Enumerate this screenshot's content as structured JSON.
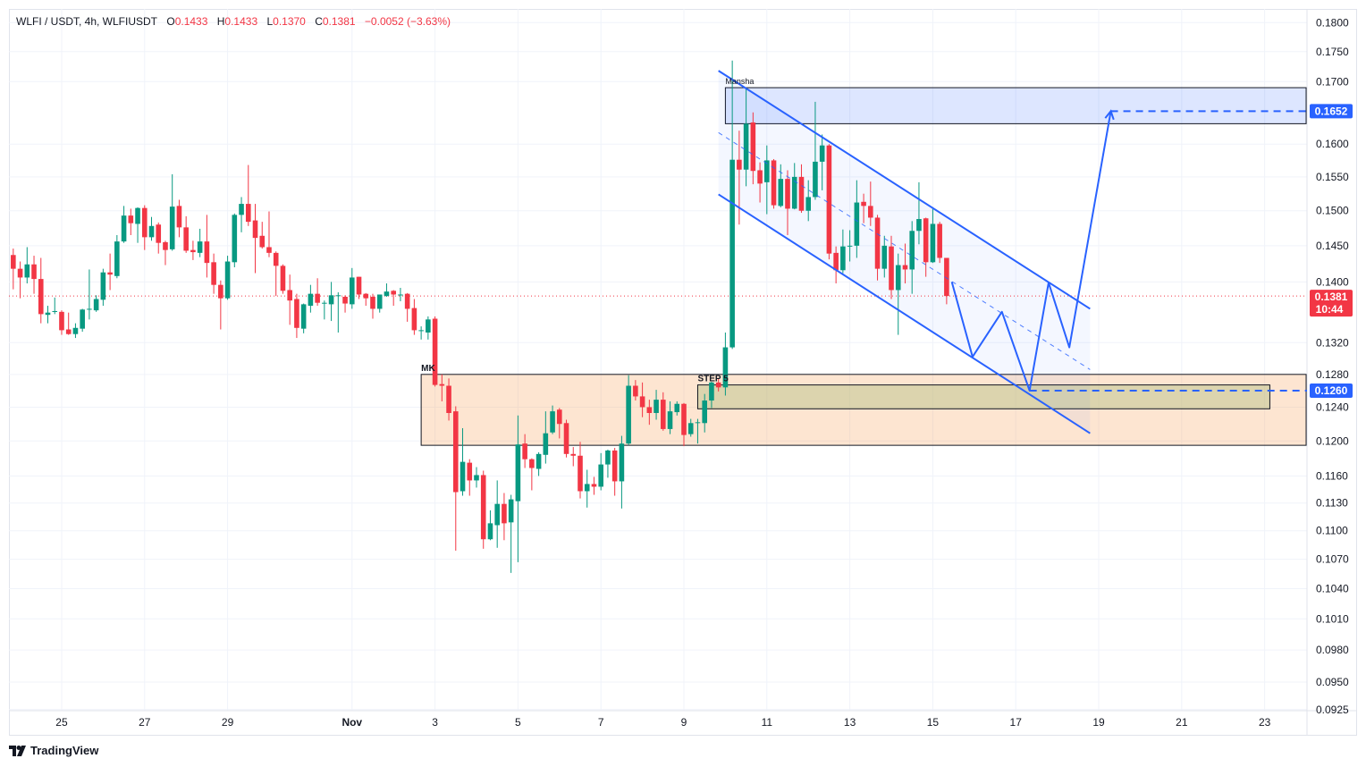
{
  "legend": {
    "symbol": "WLFI / USDT, 4h, WLFIUSDT",
    "o_label": "O",
    "o": "0.1433",
    "h_label": "H",
    "h": "0.1433",
    "l_label": "L",
    "l": "0.1370",
    "c_label": "C",
    "c": "0.1381",
    "change": "−0.0052 (−3.63%)"
  },
  "brand": {
    "name": "TradingView",
    "icon": "tradingview-logo-icon"
  },
  "colors": {
    "up": "#089981",
    "down": "#f23645",
    "drawing": "#2962ff",
    "grid": "#f0f3fa",
    "axis_text": "#131722"
  },
  "chart_data": {
    "type": "candlestick",
    "interval": "4h",
    "y_scale": "log",
    "ylim": [
      0.0924,
      0.1824
    ],
    "xlim": [
      "10-23 17:30",
      "11-24 00:30"
    ],
    "grid": true,
    "x_ticks": [
      {
        "label": "25",
        "t": "10-25 00:00"
      },
      {
        "label": "27",
        "t": "10-27 00:00"
      },
      {
        "label": "29",
        "t": "10-29 00:00"
      },
      {
        "label": "Nov",
        "t": "11-01 00:00"
      },
      {
        "label": "3",
        "t": "11-03 00:00"
      },
      {
        "label": "5",
        "t": "11-05 00:00"
      },
      {
        "label": "7",
        "t": "11-07 00:00"
      },
      {
        "label": "9",
        "t": "11-09 00:00"
      },
      {
        "label": "11",
        "t": "11-11 00:00"
      },
      {
        "label": "13",
        "t": "11-13 00:00"
      },
      {
        "label": "15",
        "t": "11-15 00:00"
      },
      {
        "label": "17",
        "t": "11-17 00:00"
      },
      {
        "label": "19",
        "t": "11-19 00:00"
      },
      {
        "label": "21",
        "t": "11-21 00:00"
      },
      {
        "label": "23",
        "t": "11-23 00:00"
      }
    ],
    "y_ticks": [
      "0.1800",
      "0.1750",
      "0.1700",
      "0.1600",
      "0.1550",
      "0.1500",
      "0.1450",
      "0.1400",
      "0.1320",
      "0.1280",
      "0.1240",
      "0.1200",
      "0.1160",
      "0.1130",
      "0.1100",
      "0.1070",
      "0.1040",
      "0.1010",
      "0.0980",
      "0.0950",
      "0.0925"
    ],
    "price_labels": [
      {
        "value": "0.1652",
        "color": "#2962ff"
      },
      {
        "value": "0.1381",
        "sub": "10:44",
        "color": "#f23645",
        "current": true
      },
      {
        "value": "0.1260",
        "color": "#2962ff"
      }
    ],
    "candles_format": [
      "time",
      "open",
      "high",
      "low",
      "close"
    ],
    "candles": [
      [
        "10-23 20:00",
        0.1437,
        0.1446,
        0.139,
        0.1418
      ],
      [
        "10-24 00:00",
        0.1418,
        0.1428,
        0.1378,
        0.1406
      ],
      [
        "10-24 04:00",
        0.1406,
        0.1448,
        0.1398,
        0.1424
      ],
      [
        "10-24 08:00",
        0.1424,
        0.1436,
        0.1384,
        0.1404
      ],
      [
        "10-24 12:00",
        0.1404,
        0.1433,
        0.1345,
        0.1357
      ],
      [
        "10-24 16:00",
        0.1356,
        0.1368,
        0.1345,
        0.1359
      ],
      [
        "10-24 20:00",
        0.136,
        0.1379,
        0.1357,
        0.1361
      ],
      [
        "10-25 00:00",
        0.136,
        0.1362,
        0.133,
        0.1336
      ],
      [
        "10-25 04:00",
        0.1337,
        0.1359,
        0.133,
        0.1331
      ],
      [
        "10-25 08:00",
        0.1331,
        0.1345,
        0.1326,
        0.1339
      ],
      [
        "10-25 12:00",
        0.1338,
        0.1364,
        0.1334,
        0.1363
      ],
      [
        "10-25 16:00",
        0.1363,
        0.1417,
        0.135,
        0.1364
      ],
      [
        "10-25 20:00",
        0.1362,
        0.1382,
        0.136,
        0.1377
      ],
      [
        "10-26 00:00",
        0.1376,
        0.1418,
        0.1368,
        0.1413
      ],
      [
        "10-26 04:00",
        0.1413,
        0.1439,
        0.1389,
        0.141
      ],
      [
        "10-26 08:00",
        0.1408,
        0.1465,
        0.1405,
        0.1456
      ],
      [
        "10-26 12:00",
        0.1456,
        0.1507,
        0.1454,
        0.1493
      ],
      [
        "10-26 16:00",
        0.1493,
        0.1503,
        0.1465,
        0.1482
      ],
      [
        "10-26 20:00",
        0.1481,
        0.1505,
        0.1454,
        0.1504
      ],
      [
        "10-27 00:00",
        0.1504,
        0.1508,
        0.1444,
        0.1462
      ],
      [
        "10-27 04:00",
        0.1462,
        0.1491,
        0.1457,
        0.1478
      ],
      [
        "10-27 08:00",
        0.148,
        0.1483,
        0.1439,
        0.1454
      ],
      [
        "10-27 12:00",
        0.1455,
        0.1457,
        0.1423,
        0.1444
      ],
      [
        "10-27 16:00",
        0.1445,
        0.1554,
        0.1443,
        0.1506
      ],
      [
        "10-27 20:00",
        0.1507,
        0.1516,
        0.1462,
        0.1476
      ],
      [
        "10-28 00:00",
        0.1476,
        0.1492,
        0.144,
        0.1443
      ],
      [
        "10-28 04:00",
        0.1444,
        0.1457,
        0.143,
        0.1441
      ],
      [
        "10-28 08:00",
        0.144,
        0.1474,
        0.1434,
        0.1456
      ],
      [
        "10-28 12:00",
        0.1456,
        0.1494,
        0.1406,
        0.1426
      ],
      [
        "10-28 16:00",
        0.1427,
        0.1439,
        0.1384,
        0.1396
      ],
      [
        "10-28 20:00",
        0.1396,
        0.1402,
        0.1337,
        0.1378
      ],
      [
        "10-29 00:00",
        0.1378,
        0.1436,
        0.1376,
        0.1428
      ],
      [
        "10-29 04:00",
        0.1427,
        0.1496,
        0.142,
        0.1494
      ],
      [
        "10-29 08:00",
        0.1494,
        0.152,
        0.1469,
        0.151
      ],
      [
        "10-29 12:00",
        0.151,
        0.1568,
        0.1478,
        0.1484
      ],
      [
        "10-29 16:00",
        0.1486,
        0.151,
        0.1412,
        0.1461
      ],
      [
        "10-29 20:00",
        0.1464,
        0.1484,
        0.1446,
        0.1448
      ],
      [
        "10-30 00:00",
        0.1448,
        0.1499,
        0.1434,
        0.144
      ],
      [
        "10-30 04:00",
        0.144,
        0.1442,
        0.1381,
        0.1422
      ],
      [
        "10-30 08:00",
        0.1422,
        0.1424,
        0.1384,
        0.1388
      ],
      [
        "10-30 12:00",
        0.1389,
        0.141,
        0.1343,
        0.1375
      ],
      [
        "10-30 16:00",
        0.1377,
        0.1384,
        0.1326,
        0.1339
      ],
      [
        "10-30 20:00",
        0.1338,
        0.1371,
        0.1332,
        0.137
      ],
      [
        "10-31 00:00",
        0.1368,
        0.1396,
        0.1359,
        0.1384
      ],
      [
        "10-31 04:00",
        0.1384,
        0.1405,
        0.1368,
        0.1372
      ],
      [
        "10-31 08:00",
        0.1372,
        0.1375,
        0.135,
        0.1372
      ],
      [
        "10-31 12:00",
        0.137,
        0.14,
        0.1348,
        0.1382
      ],
      [
        "10-31 16:00",
        0.1382,
        0.1386,
        0.1333,
        0.1382
      ],
      [
        "10-31 20:00",
        0.138,
        0.1382,
        0.1359,
        0.1371
      ],
      [
        "11-01 00:00",
        0.137,
        0.1419,
        0.1364,
        0.1406
      ],
      [
        "11-01 04:00",
        0.1407,
        0.1407,
        0.1377,
        0.1383
      ],
      [
        "11-01 08:00",
        0.1384,
        0.1385,
        0.1368,
        0.1378
      ],
      [
        "11-01 12:00",
        0.138,
        0.1384,
        0.1351,
        0.1364
      ],
      [
        "11-01 16:00",
        0.1364,
        0.1383,
        0.1359,
        0.1383
      ],
      [
        "11-01 20:00",
        0.1381,
        0.1398,
        0.138,
        0.1387
      ],
      [
        "11-02 00:00",
        0.1388,
        0.1389,
        0.1368,
        0.1383
      ],
      [
        "11-02 04:00",
        0.1383,
        0.1392,
        0.1374,
        0.1383
      ],
      [
        "11-02 08:00",
        0.1384,
        0.1385,
        0.1347,
        0.1364
      ],
      [
        "11-02 12:00",
        0.1365,
        0.1377,
        0.133,
        0.1336
      ],
      [
        "11-02 16:00",
        0.1336,
        0.1341,
        0.1324,
        0.1336
      ],
      [
        "11-02 20:00",
        0.1333,
        0.1354,
        0.1324,
        0.135
      ],
      [
        "11-03 00:00",
        0.1351,
        0.1354,
        0.1265,
        0.1267
      ],
      [
        "11-03 04:00",
        0.1268,
        0.128,
        0.1247,
        0.1266
      ],
      [
        "11-03 08:00",
        0.1266,
        0.1275,
        0.1224,
        0.1233
      ],
      [
        "11-03 12:00",
        0.1235,
        0.1241,
        0.1079,
        0.1142
      ],
      [
        "11-03 16:00",
        0.1143,
        0.1215,
        0.1138,
        0.1176
      ],
      [
        "11-03 20:00",
        0.1175,
        0.1179,
        0.1138,
        0.1155
      ],
      [
        "11-04 00:00",
        0.1155,
        0.117,
        0.1147,
        0.1161
      ],
      [
        "11-04 04:00",
        0.1161,
        0.1166,
        0.1081,
        0.1091
      ],
      [
        "11-04 08:00",
        0.1091,
        0.1122,
        0.109,
        0.1108
      ],
      [
        "11-04 12:00",
        0.1106,
        0.1155,
        0.1082,
        0.1129
      ],
      [
        "11-04 16:00",
        0.1129,
        0.1141,
        0.109,
        0.1108
      ],
      [
        "11-04 20:00",
        0.1109,
        0.1139,
        0.1056,
        0.1134
      ],
      [
        "11-05 00:00",
        0.1132,
        0.123,
        0.1067,
        0.1196
      ],
      [
        "11-05 04:00",
        0.1197,
        0.1208,
        0.1169,
        0.1179
      ],
      [
        "11-05 08:00",
        0.1179,
        0.118,
        0.1144,
        0.1169
      ],
      [
        "11-05 12:00",
        0.1168,
        0.1187,
        0.116,
        0.1185
      ],
      [
        "11-05 16:00",
        0.1184,
        0.1235,
        0.1174,
        0.1209
      ],
      [
        "11-05 20:00",
        0.121,
        0.1242,
        0.1208,
        0.1235
      ],
      [
        "11-06 00:00",
        0.1237,
        0.1239,
        0.1203,
        0.122
      ],
      [
        "11-06 04:00",
        0.1221,
        0.1225,
        0.1181,
        0.1185
      ],
      [
        "11-06 08:00",
        0.1185,
        0.1193,
        0.1171,
        0.1183
      ],
      [
        "11-06 12:00",
        0.1183,
        0.1199,
        0.1135,
        0.1143
      ],
      [
        "11-06 16:00",
        0.1143,
        0.1167,
        0.1125,
        0.1151
      ],
      [
        "11-06 20:00",
        0.1151,
        0.1159,
        0.1139,
        0.1148
      ],
      [
        "11-07 00:00",
        0.1148,
        0.1186,
        0.1144,
        0.1173
      ],
      [
        "11-07 04:00",
        0.1173,
        0.119,
        0.1158,
        0.1189
      ],
      [
        "11-07 08:00",
        0.1189,
        0.1192,
        0.1138,
        0.1154
      ],
      [
        "11-07 12:00",
        0.1154,
        0.1206,
        0.1124,
        0.1197
      ],
      [
        "11-07 16:00",
        0.1197,
        0.1279,
        0.1195,
        0.1266
      ],
      [
        "11-07 20:00",
        0.1266,
        0.1273,
        0.1248,
        0.1253
      ],
      [
        "11-08 00:00",
        0.1253,
        0.127,
        0.1228,
        0.124
      ],
      [
        "11-08 04:00",
        0.124,
        0.1249,
        0.1219,
        0.1233
      ],
      [
        "11-08 08:00",
        0.1233,
        0.1261,
        0.1225,
        0.1249
      ],
      [
        "11-08 12:00",
        0.1249,
        0.1258,
        0.1212,
        0.1214
      ],
      [
        "11-08 16:00",
        0.1214,
        0.1247,
        0.1208,
        0.1235
      ],
      [
        "11-08 20:00",
        0.1234,
        0.1247,
        0.123,
        0.1244
      ],
      [
        "11-09 00:00",
        0.1244,
        0.1245,
        0.1194,
        0.1207
      ],
      [
        "11-09 04:00",
        0.1208,
        0.1226,
        0.1205,
        0.1221
      ],
      [
        "11-09 08:00",
        0.1222,
        0.1226,
        0.1197,
        0.1222
      ],
      [
        "11-09 12:00",
        0.1221,
        0.1256,
        0.121,
        0.1248
      ],
      [
        "11-09 16:00",
        0.1248,
        0.1271,
        0.1239,
        0.127
      ],
      [
        "11-09 20:00",
        0.127,
        0.1275,
        0.1259,
        0.1264
      ],
      [
        "11-10 00:00",
        0.1264,
        0.1333,
        0.1254,
        0.1314
      ],
      [
        "11-10 04:00",
        0.1314,
        0.1735,
        0.1312,
        0.1576
      ],
      [
        "11-10 08:00",
        0.1576,
        0.1621,
        0.148,
        0.1561
      ],
      [
        "11-10 12:00",
        0.1561,
        0.169,
        0.1536,
        0.1632
      ],
      [
        "11-10 16:00",
        0.1634,
        0.165,
        0.1539,
        0.1559
      ],
      [
        "11-10 20:00",
        0.156,
        0.1572,
        0.1512,
        0.154
      ],
      [
        "11-11 00:00",
        0.1542,
        0.1598,
        0.1495,
        0.1575
      ],
      [
        "11-11 04:00",
        0.1575,
        0.1577,
        0.1503,
        0.1508
      ],
      [
        "11-11 08:00",
        0.1507,
        0.1569,
        0.1505,
        0.1547
      ],
      [
        "11-11 12:00",
        0.1547,
        0.156,
        0.1465,
        0.1503
      ],
      [
        "11-11 16:00",
        0.1503,
        0.1571,
        0.1502,
        0.155
      ],
      [
        "11-11 20:00",
        0.155,
        0.1569,
        0.1497,
        0.15
      ],
      [
        "11-12 00:00",
        0.15,
        0.1545,
        0.1485,
        0.152
      ],
      [
        "11-12 04:00",
        0.152,
        0.1667,
        0.1516,
        0.1573
      ],
      [
        "11-12 08:00",
        0.1573,
        0.1615,
        0.153,
        0.1598
      ],
      [
        "11-12 12:00",
        0.1598,
        0.16,
        0.1431,
        0.1439
      ],
      [
        "11-12 16:00",
        0.144,
        0.1449,
        0.1398,
        0.1416
      ],
      [
        "11-12 20:00",
        0.1416,
        0.1473,
        0.1412,
        0.1449
      ],
      [
        "11-13 00:00",
        0.1449,
        0.1472,
        0.1428,
        0.145
      ],
      [
        "11-13 04:00",
        0.145,
        0.1545,
        0.1433,
        0.1512
      ],
      [
        "11-13 08:00",
        0.1513,
        0.1525,
        0.1482,
        0.1507
      ],
      [
        "11-13 12:00",
        0.1507,
        0.1543,
        0.1478,
        0.149
      ],
      [
        "11-13 16:00",
        0.149,
        0.1494,
        0.1402,
        0.1418
      ],
      [
        "11-13 20:00",
        0.1418,
        0.1464,
        0.1406,
        0.145
      ],
      [
        "11-14 00:00",
        0.1449,
        0.1464,
        0.1377,
        0.1389
      ],
      [
        "11-14 04:00",
        0.1389,
        0.1439,
        0.133,
        0.1423
      ],
      [
        "11-14 08:00",
        0.1423,
        0.1453,
        0.1398,
        0.1417
      ],
      [
        "11-14 12:00",
        0.1417,
        0.1485,
        0.1384,
        0.1471
      ],
      [
        "11-14 16:00",
        0.1471,
        0.1542,
        0.1452,
        0.1488
      ],
      [
        "11-14 20:00",
        0.1489,
        0.149,
        0.1407,
        0.1427
      ],
      [
        "11-15 00:00",
        0.1427,
        0.1503,
        0.1426,
        0.1481
      ],
      [
        "11-15 04:00",
        0.1481,
        0.1484,
        0.1426,
        0.1433
      ],
      [
        "11-15 08:00",
        0.1433,
        0.1433,
        0.137,
        0.1381
      ]
    ],
    "annotations": {
      "zones": [
        {
          "label": "Mansha",
          "t1": "11-10 00:00",
          "t2": "11-24 00:00",
          "p1": 0.169,
          "p2": 0.1632,
          "fill": "rgba(41,98,255,0.16)"
        },
        {
          "label": "MK",
          "t1": "11-02 16:00",
          "t2": "11-24 00:00",
          "p1": 0.128,
          "p2": 0.1195,
          "fill": "rgba(247,160,90,0.28)"
        },
        {
          "label": "STEP 5",
          "t1": "11-09 08:00",
          "t2": "11-23 03:00",
          "p1": 0.1267,
          "p2": 0.1238,
          "fill": "rgba(180,190,130,0.45)"
        }
      ],
      "channel": {
        "t1": "11-09 20:00",
        "t2": "11-18 19:00",
        "upper": [
          0.1718,
          0.1364
        ],
        "middle": [
          0.1618,
          0.1286
        ],
        "lower": [
          0.1524,
          0.1209
        ]
      },
      "projection_path": [
        {
          "t": "11-15 11:00",
          "p": 0.14
        },
        {
          "t": "11-15 23:00",
          "p": 0.1302
        },
        {
          "t": "11-16 16:00",
          "p": 0.136
        },
        {
          "t": "11-17 08:00",
          "p": 0.126
        },
        {
          "t": "11-17 19:00",
          "p": 0.1399
        },
        {
          "t": "11-18 07:00",
          "p": 0.1314
        },
        {
          "t": "11-19 07:00",
          "p": 0.1652
        }
      ],
      "target_lines": [
        {
          "t": "11-19 07:00",
          "p": 0.1652
        },
        {
          "t": "11-17 08:00",
          "p": 0.126
        }
      ],
      "current_price": 0.1381
    }
  }
}
